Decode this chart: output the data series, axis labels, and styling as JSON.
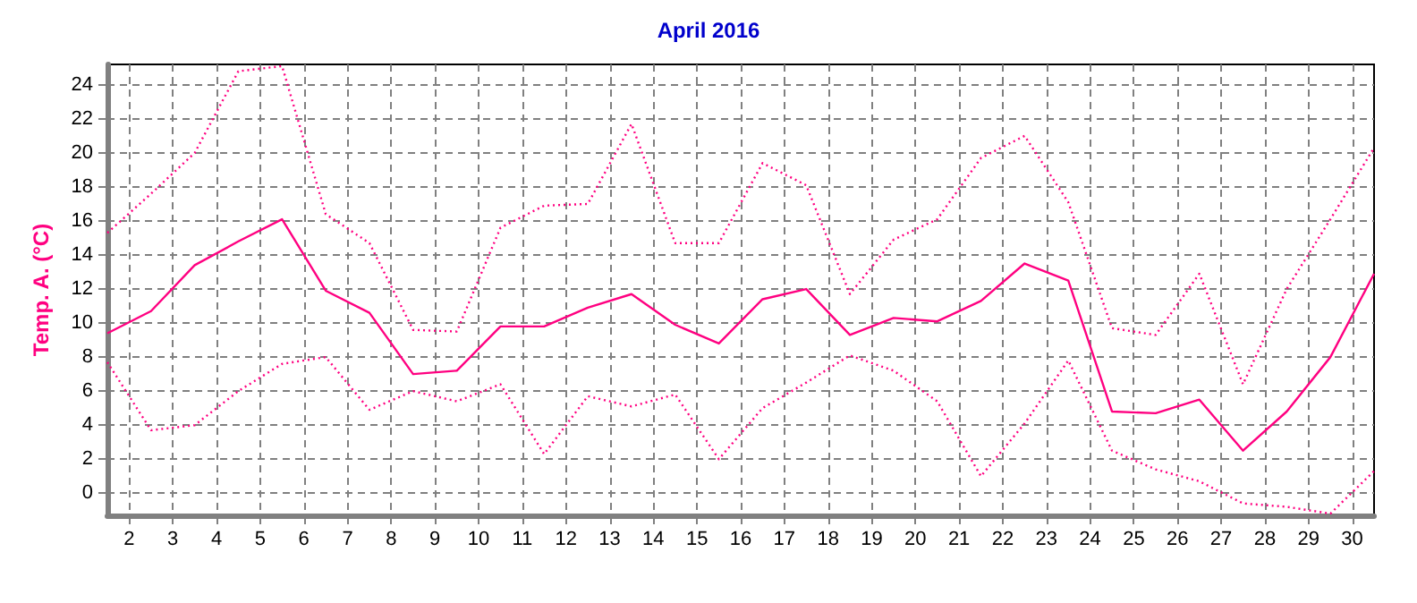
{
  "chart_data": {
    "type": "line",
    "title": "April 2016",
    "ylabel": "Temp. A. (°C)",
    "x": [
      1.5,
      2.5,
      3.5,
      4.5,
      5.5,
      6.5,
      7.5,
      8.5,
      9.5,
      10.5,
      11.5,
      12.5,
      13.5,
      14.5,
      15.5,
      16.5,
      17.5,
      18.5,
      19.5,
      20.5,
      21.5,
      22.5,
      23.5,
      24.5,
      25.5,
      26.5,
      27.5,
      28.5,
      29.5,
      30.5
    ],
    "xlim": [
      1.5,
      30.5
    ],
    "xticks": [
      2,
      3,
      4,
      5,
      6,
      7,
      8,
      9,
      10,
      11,
      12,
      13,
      14,
      15,
      16,
      17,
      18,
      19,
      20,
      21,
      22,
      23,
      24,
      25,
      26,
      27,
      28,
      29,
      30
    ],
    "ylim": [
      -1.3,
      25.2
    ],
    "yticks": [
      0,
      2,
      4,
      6,
      8,
      10,
      12,
      14,
      16,
      18,
      20,
      22,
      24
    ],
    "grid": true,
    "marker": "none",
    "series": [
      {
        "color": "#ff0080",
        "line_style": "dotted",
        "values": [
          15.3,
          17.6,
          20.0,
          24.8,
          25.1,
          16.4,
          14.7,
          9.6,
          9.5,
          15.6,
          16.9,
          17.0,
          21.7,
          14.7,
          14.7,
          19.4,
          18.1,
          11.7,
          14.9,
          16.1,
          19.7,
          21.0,
          17.1,
          9.7,
          9.3,
          12.9,
          6.4,
          12.0,
          16.1,
          20.3
        ]
      },
      {
        "color": "#ff0080",
        "line_style": "solid",
        "values": [
          9.4,
          10.7,
          13.4,
          14.8,
          16.1,
          11.9,
          10.6,
          7.0,
          7.2,
          9.8,
          9.8,
          10.9,
          11.7,
          9.9,
          8.8,
          11.4,
          12.0,
          9.3,
          10.3,
          10.1,
          11.3,
          13.5,
          12.5,
          4.8,
          4.7,
          5.5,
          2.5,
          4.8,
          8.0,
          12.9
        ]
      },
      {
        "color": "#ff0080",
        "line_style": "dotted",
        "values": [
          7.7,
          3.7,
          4.0,
          6.0,
          7.6,
          8.0,
          4.9,
          6.0,
          5.4,
          6.4,
          2.3,
          5.7,
          5.1,
          5.8,
          2.0,
          5.0,
          6.5,
          8.1,
          7.2,
          5.4,
          1.0,
          4.1,
          7.8,
          2.5,
          1.4,
          0.7,
          -0.6,
          -0.8,
          -1.2,
          1.3
        ]
      }
    ]
  }
}
